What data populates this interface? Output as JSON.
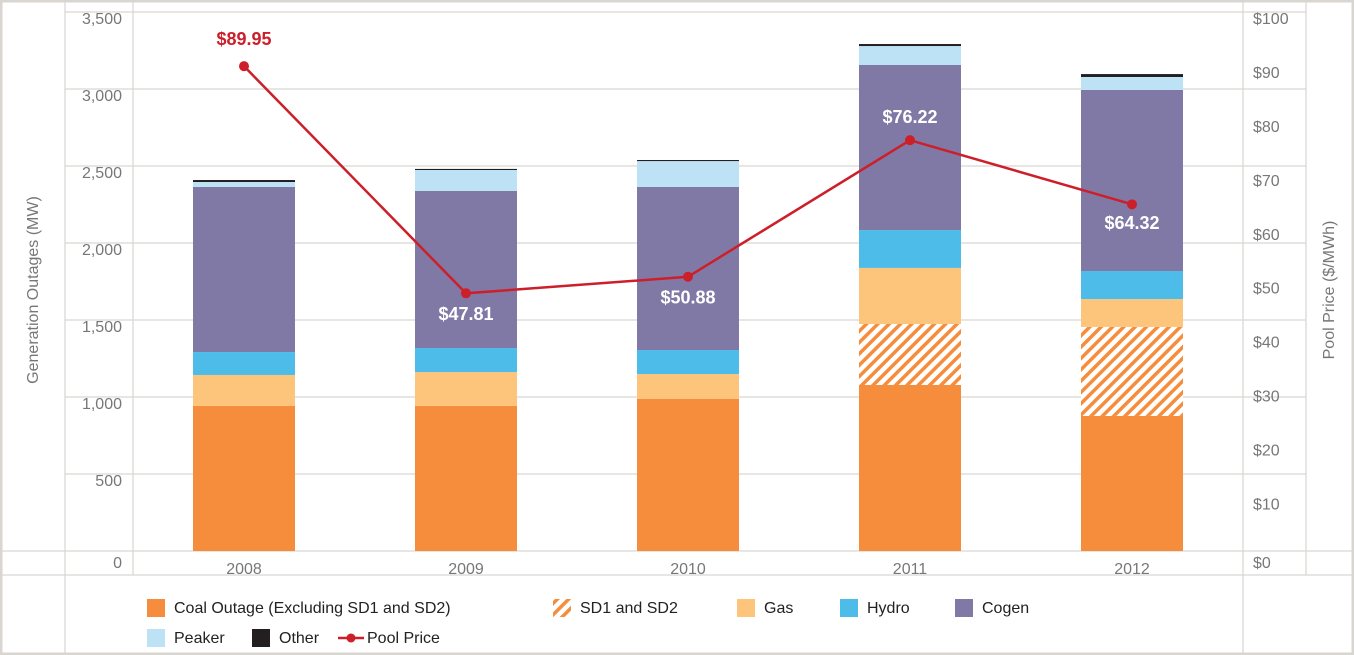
{
  "chart_data": {
    "type": "bar",
    "stacked": true,
    "categories": [
      "2008",
      "2009",
      "2010",
      "2011",
      "2012"
    ],
    "ylabel": "Generation Outages (MW)",
    "y2label": "Pool Price ($/MWh)",
    "ylim": [
      0,
      3500
    ],
    "yticks": [
      0,
      500,
      {
        "value": 1000,
        "label": "1,000"
      },
      {
        "value": 1500,
        "label": "1,500"
      },
      {
        "value": 2000,
        "label": "2,000"
      },
      {
        "value": 2500,
        "label": "2,500"
      },
      {
        "value": 3000,
        "label": "3,000"
      },
      {
        "value": 3500,
        "label": "3,500"
      }
    ],
    "y2lim": [
      0,
      100
    ],
    "y2ticks": [
      {
        "value": 0,
        "label": "$0"
      },
      {
        "value": 10,
        "label": "$10"
      },
      {
        "value": 20,
        "label": "$20"
      },
      {
        "value": 30,
        "label": "$30"
      },
      {
        "value": 40,
        "label": "$40"
      },
      {
        "value": 50,
        "label": "$50"
      },
      {
        "value": 60,
        "label": "$60"
      },
      {
        "value": 70,
        "label": "$70"
      },
      {
        "value": 80,
        "label": "$80"
      },
      {
        "value": 90,
        "label": "$90"
      },
      {
        "value": 100,
        "label": "$100"
      }
    ],
    "grid": true,
    "legend": "bottom",
    "series": [
      {
        "name": "Coal Outage (Excluding SD1 and SD2)",
        "color": "#f58d3d",
        "values": [
          942,
          942,
          987,
          1078,
          877
        ]
      },
      {
        "name": "SD1 and SD2",
        "color": "#f58d3d",
        "hatch": true,
        "values": [
          0,
          0,
          0,
          396,
          578
        ]
      },
      {
        "name": "Gas",
        "color": "#fdc57b",
        "values": [
          201,
          220,
          162,
          364,
          181
        ]
      },
      {
        "name": "Hydro",
        "color": "#4dbce9",
        "values": [
          149,
          156,
          156,
          246,
          182
        ]
      },
      {
        "name": "Cogen",
        "color": "#8079a6",
        "values": [
          1072,
          1020,
          1059,
          1072,
          1176
        ]
      },
      {
        "name": "Peaker",
        "color": "#bde1f5",
        "values": [
          32,
          136,
          168,
          123,
          84
        ]
      },
      {
        "name": "Other",
        "color": "#231f20",
        "values": [
          13,
          7,
          7,
          13,
          19
        ]
      },
      {
        "name": "Pool Price",
        "type": "line",
        "axis": "y2",
        "color": "#cc1f2a",
        "values": [
          89.95,
          47.81,
          50.88,
          76.22,
          64.32
        ],
        "value_labels": [
          "$89.95",
          "$47.81",
          "$50.88",
          "$76.22",
          "$64.32"
        ]
      }
    ]
  }
}
